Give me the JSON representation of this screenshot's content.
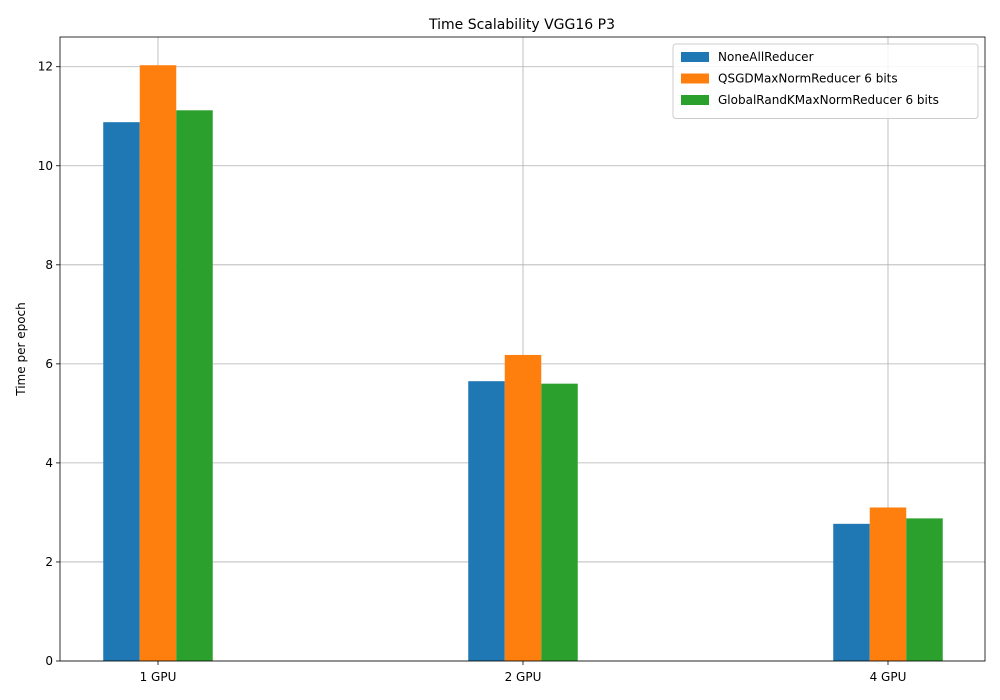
{
  "chart_data": {
    "type": "bar",
    "title": "Time Scalability VGG16 P3",
    "xlabel": "",
    "ylabel": "Time per epoch",
    "categories": [
      "1 GPU",
      "2 GPU",
      "4 GPU"
    ],
    "ylim": [
      0,
      12.6
    ],
    "yticks": [
      0,
      2,
      4,
      6,
      8,
      10,
      12
    ],
    "grid": true,
    "legend_position": "top-right",
    "series": [
      {
        "name": "NoneAllReducer",
        "color": "#1f77b4",
        "values": [
          10.88,
          5.65,
          2.77
        ]
      },
      {
        "name": "QSGDMaxNormReducer 6 bits",
        "color": "#ff7f0e",
        "values": [
          12.03,
          6.18,
          3.1
        ]
      },
      {
        "name": "GlobalRandKMaxNormReducer 6 bits",
        "color": "#2ca02c",
        "values": [
          11.12,
          5.6,
          2.88
        ]
      }
    ]
  }
}
